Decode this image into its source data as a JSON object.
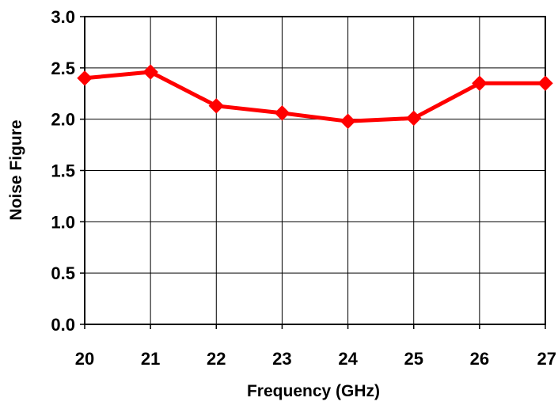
{
  "chart_data": {
    "type": "line",
    "title": "",
    "xlabel": "Frequency (GHz)",
    "ylabel": "Noise Figure",
    "x": [
      20,
      21,
      22,
      23,
      24,
      25,
      26,
      27
    ],
    "x_tick_labels": [
      "20",
      "21",
      "22",
      "23",
      "24",
      "25",
      "26",
      "27"
    ],
    "y_tick_labels": [
      "0.0",
      "0.5",
      "1.0",
      "1.5",
      "2.0",
      "2.5",
      "3.0"
    ],
    "xlim": [
      20,
      27
    ],
    "ylim": [
      0,
      3.0
    ],
    "grid": true,
    "legend": false,
    "series": [
      {
        "values": [
          2.4,
          2.46,
          2.13,
          2.06,
          1.98,
          2.01,
          2.35,
          2.35
        ],
        "color": "#ff0000",
        "marker": "diamond"
      }
    ]
  }
}
